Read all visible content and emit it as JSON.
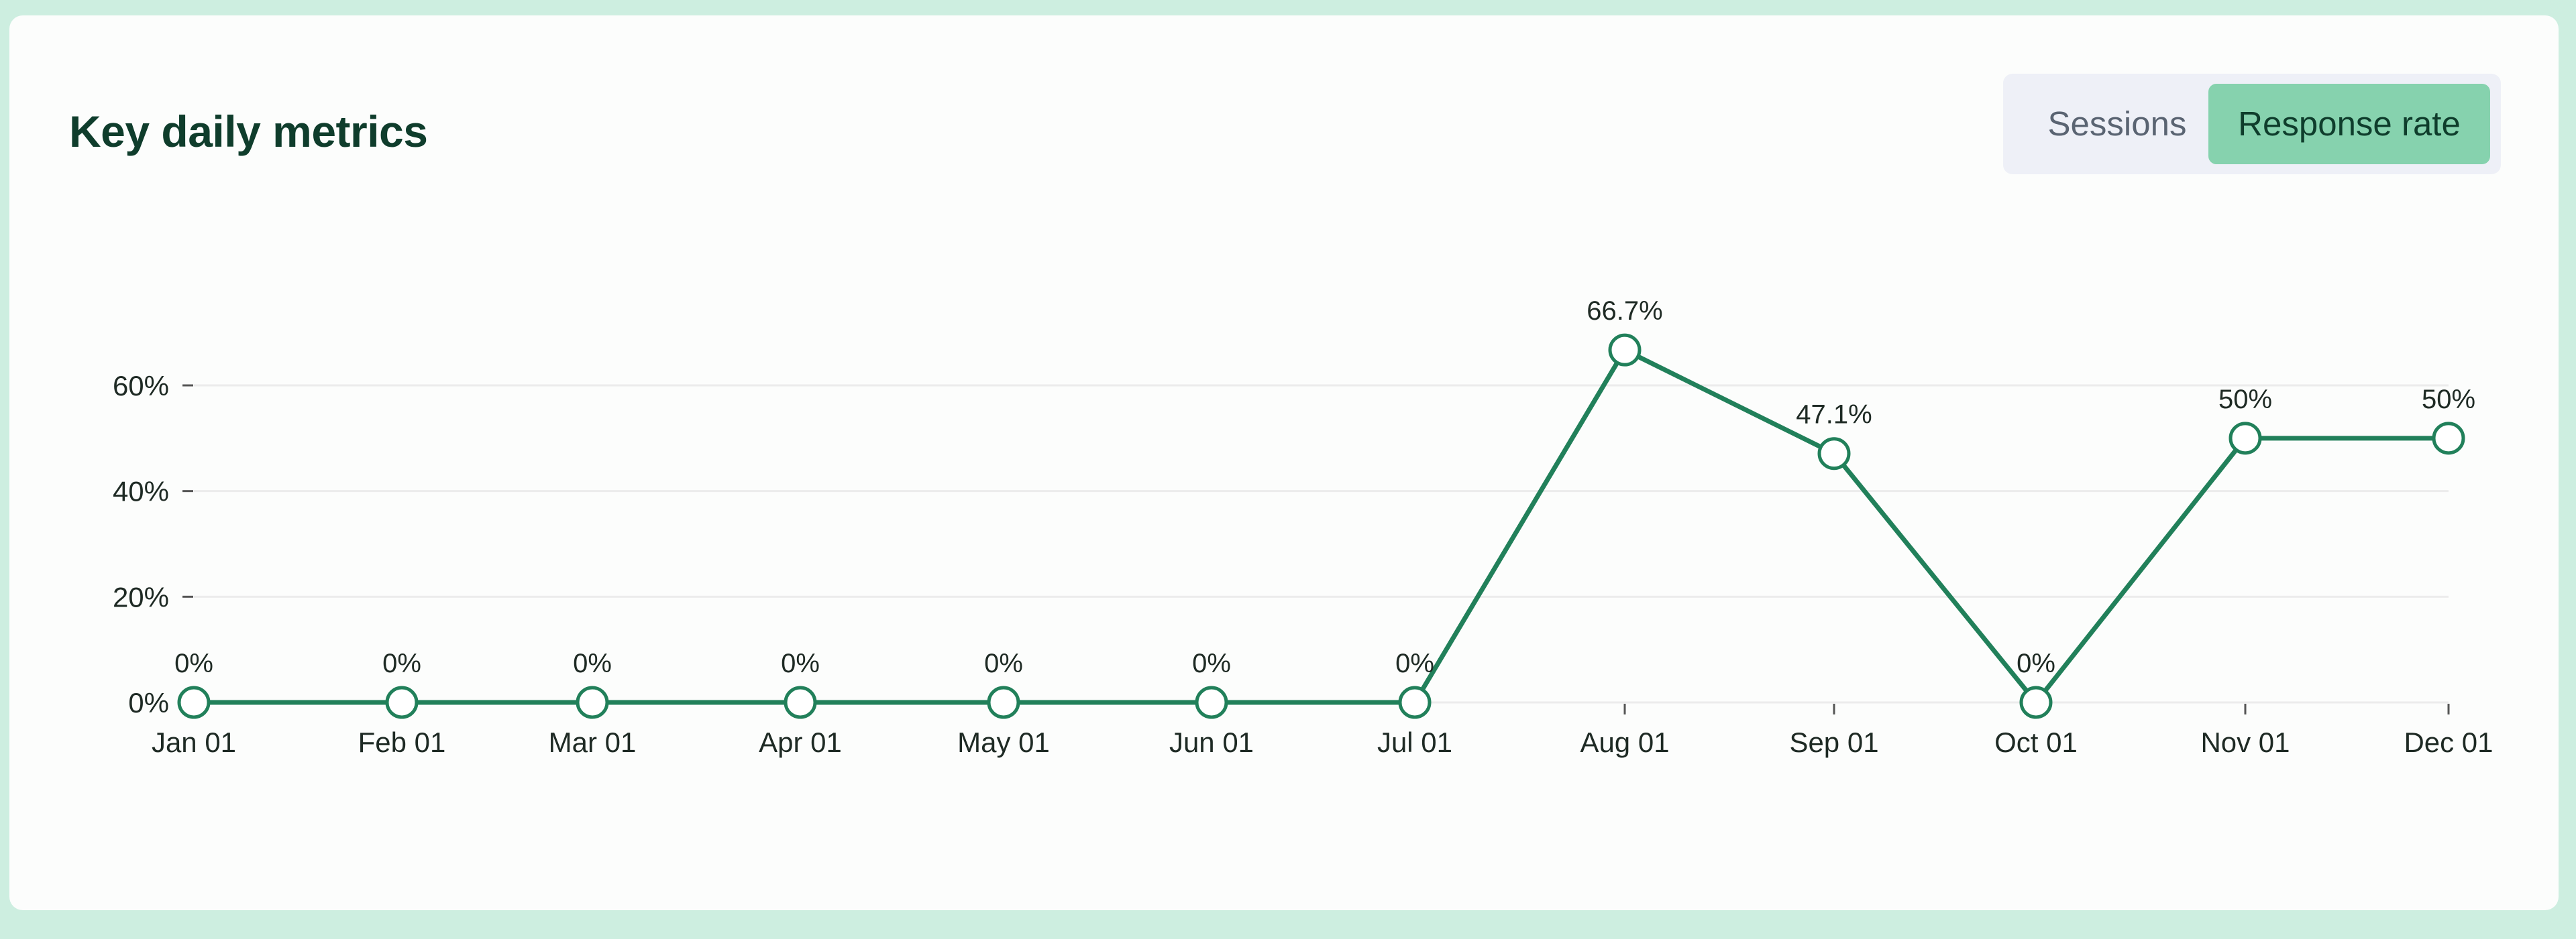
{
  "card": {
    "title": "Key daily metrics"
  },
  "toggle": {
    "options": [
      {
        "label": "Sessions",
        "active": false
      },
      {
        "label": "Response rate",
        "active": true
      }
    ]
  },
  "colors": {
    "line": "#21805a",
    "active_button": "#86d2ae",
    "title": "#0f3d2c"
  },
  "chart_data": {
    "type": "line",
    "title": "",
    "xlabel": "",
    "ylabel": "",
    "x": [
      "Jan 01",
      "Feb 01",
      "Mar 01",
      "Apr 01",
      "May 01",
      "Jun 01",
      "Jul 01",
      "Aug 01",
      "Sep 01",
      "Oct 01",
      "Nov 01",
      "Dec 01"
    ],
    "series": [
      {
        "values": [
          0,
          0,
          0,
          0,
          0,
          0,
          0,
          66.7,
          47.1,
          0,
          50,
          50
        ],
        "data_labels": [
          "0%",
          "0%",
          "0%",
          "0%",
          "0%",
          "0%",
          "0%",
          "66.7%",
          "47.1%",
          "0%",
          "50%",
          "50%"
        ]
      }
    ],
    "y_ticks": [
      0,
      20,
      40,
      60
    ],
    "y_tick_labels": [
      "0%",
      "20%",
      "40%",
      "60%"
    ],
    "ylim": [
      0,
      70
    ],
    "grid": true,
    "legend": "none"
  }
}
